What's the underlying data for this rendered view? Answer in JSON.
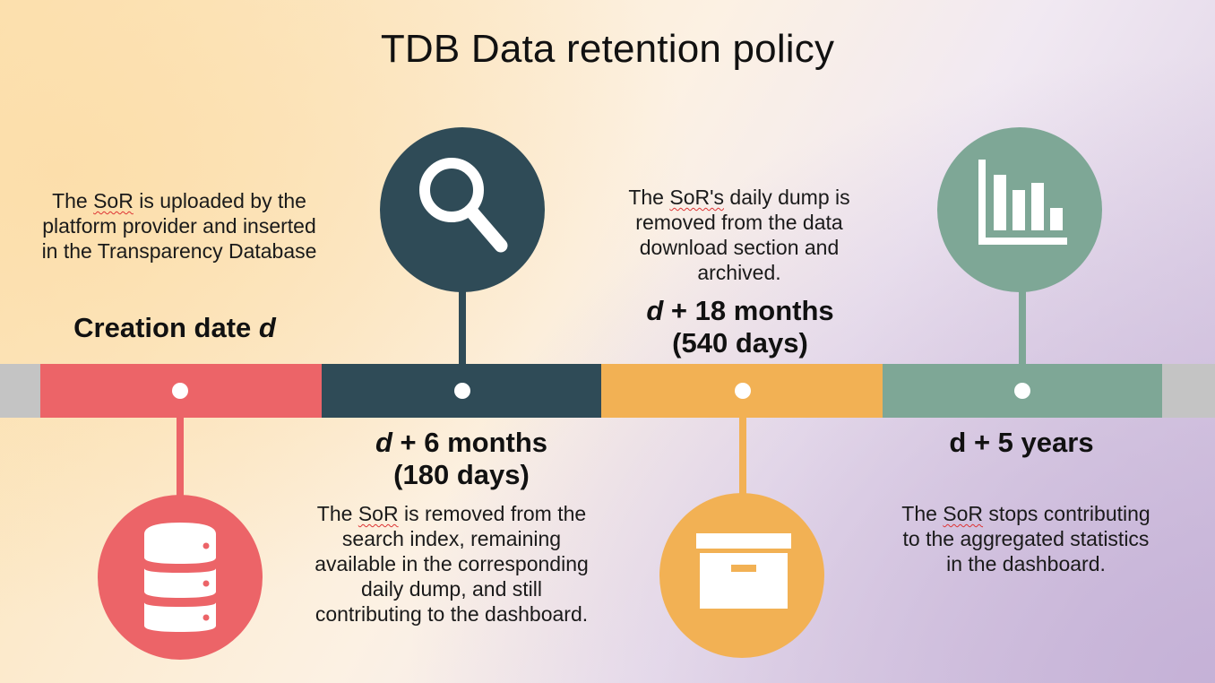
{
  "title": "TDB Data retention policy",
  "colors": {
    "creation": "#ec6468",
    "six_months": "#2f4b57",
    "eighteen_months": "#f2b154",
    "five_years": "#7ea796",
    "bar_end": "#c4c4c4"
  },
  "stages": [
    {
      "icon": "database-icon",
      "milestone_main": "Creation date ",
      "milestone_var": "d",
      "milestone_days": "",
      "desc_before": "The ",
      "desc_term": "SoR",
      "desc_after": " is uploaded by the platform provider and inserted in the Transparency Database"
    },
    {
      "icon": "search-icon",
      "milestone_var": "d",
      "milestone_main": " + 6 months",
      "milestone_days": "(180 days)",
      "desc_before": "The ",
      "desc_term": "SoR",
      "desc_after": " is removed from the search index, remaining available in the corresponding daily dump, and still contributing to the dashboard."
    },
    {
      "icon": "archive-box-icon",
      "milestone_var": "d",
      "milestone_main": " + 18 months",
      "milestone_days": "(540 days)",
      "desc_before": "The ",
      "desc_term": "SoR's",
      "desc_after": " daily dump is removed from the data download section and archived."
    },
    {
      "icon": "bar-chart-icon",
      "milestone_var": "",
      "milestone_main": "d + 5 years",
      "milestone_days": "",
      "desc_before": "The ",
      "desc_term": "SoR",
      "desc_after": " stops contributing to the aggregated statistics in the dashboard."
    }
  ]
}
